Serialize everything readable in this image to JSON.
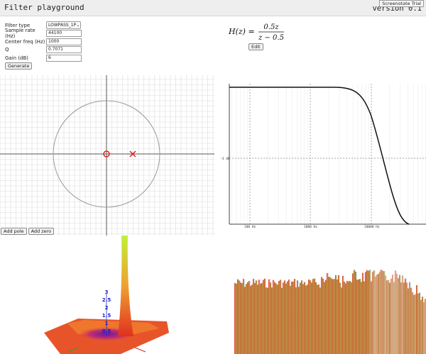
{
  "header": {
    "title": "Filter playground",
    "version": "version 0.1",
    "badge": "Screenotate Trial"
  },
  "form": {
    "filter_type_label": "Filter type",
    "filter_type_value": "LOWPASS_1P",
    "sample_rate_label": "Sample rate (Hz)",
    "sample_rate_value": "44100",
    "center_freq_label": "Center freq (Hz)",
    "center_freq_value": "1000",
    "q_label": "Q",
    "q_value": "0.7071",
    "gain_label": "Gain (dB)",
    "gain_value": "6",
    "generate_label": "Generate"
  },
  "transfer": {
    "lhs": "H(z) =",
    "numerator": "0.5z",
    "denominator": "z − 0.5",
    "edit_label": "Edit"
  },
  "pole_zero": {
    "add_pole_label": "Add pole",
    "add_zero_label": "Add zero",
    "zero_marker": "circle",
    "pole_marker": "cross",
    "marker_color": "#e02020"
  },
  "bode": {
    "ylabel_tick": "-3 dB",
    "xticks": [
      "100 Hz",
      "1000 Hz",
      "10000 Hz"
    ]
  },
  "surface": {
    "labels": [
      "3",
      "2.5",
      "2",
      "1.5",
      "1",
      "0.5"
    ]
  },
  "colors": {
    "accent": "#e02020"
  }
}
